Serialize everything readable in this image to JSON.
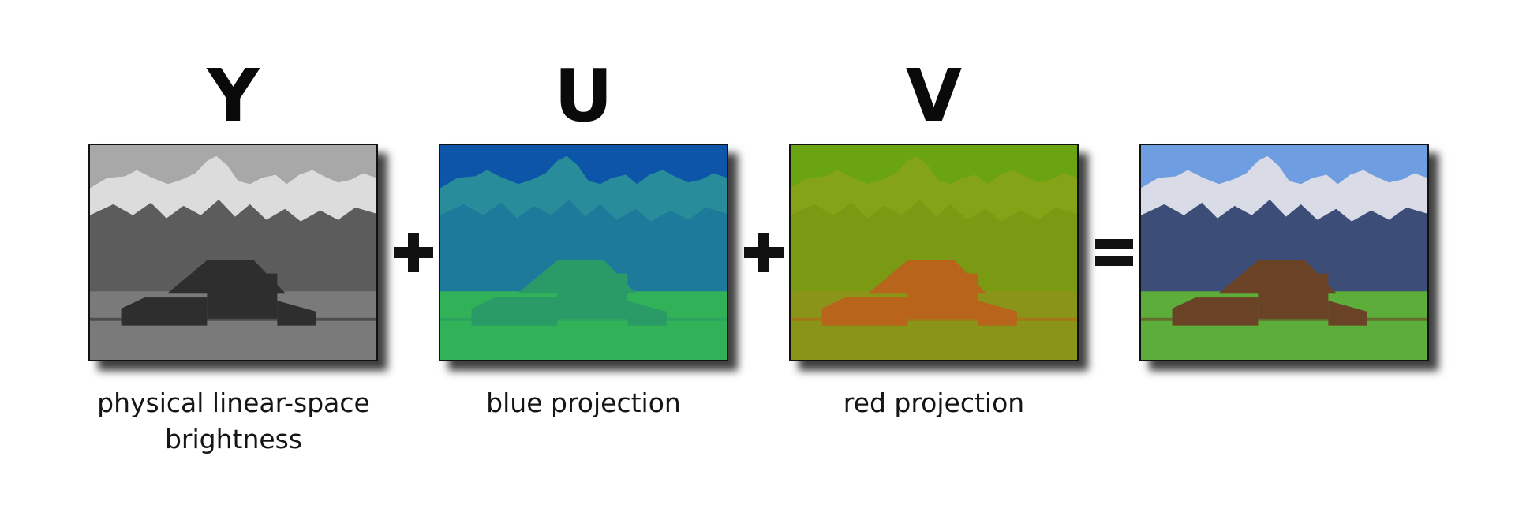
{
  "components": [
    {
      "letter": "Y",
      "caption": "physical linear-space brightness",
      "caption_lines": [
        "physical linear-space",
        "brightness"
      ],
      "tone": "grayscale"
    },
    {
      "letter": "U",
      "caption": "blue projection",
      "caption_lines": [
        "blue projection"
      ],
      "tone": "blue-green"
    },
    {
      "letter": "V",
      "caption": "red projection",
      "caption_lines": [
        "red projection"
      ],
      "tone": "olive-orange"
    },
    {
      "letter": "",
      "caption": "",
      "caption_lines": [],
      "tone": "full-color"
    }
  ],
  "operators": [
    "+",
    "+",
    "="
  ],
  "colors": {
    "y_sky": "#a8a8a8",
    "y_mountain": "#5c5c5c",
    "y_snow": "#f2f2f2",
    "y_barn": "#2e2e2e",
    "y_grass": "#7a7a7a",
    "u_sky": "#0c55a8",
    "u_mountain": "#1d7a9a",
    "u_snow": "#2a8f9a",
    "u_barn": "#2a9a66",
    "u_grass": "#32b258",
    "v_sky": "#6aa412",
    "v_mountain": "#7a9a14",
    "v_snow": "#86a418",
    "v_barn": "#b8641a",
    "v_grass": "#8a9418",
    "c_sky": "#6f9de2",
    "c_mountain": "#3c4e78",
    "c_snow": "#f4f6fa",
    "c_barn": "#6a4226",
    "c_grass": "#5cad3a"
  },
  "icons": [
    "plus-operator-icon",
    "plus-operator-icon",
    "equals-operator-icon"
  ]
}
